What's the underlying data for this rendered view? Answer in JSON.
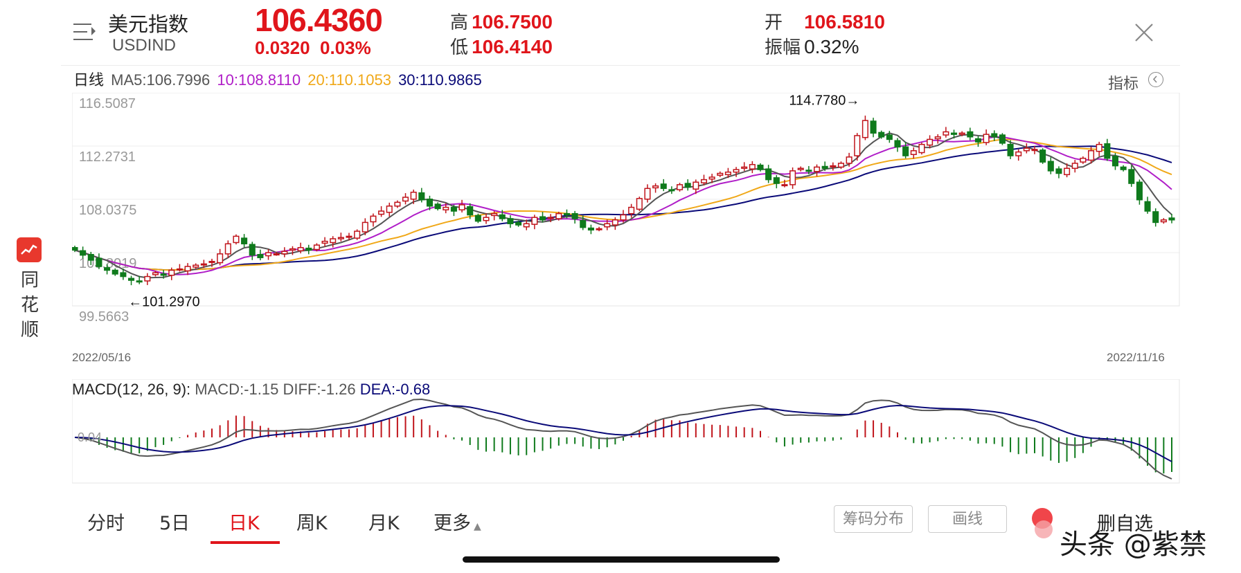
{
  "header": {
    "name": "美元指数",
    "code": "USDIND",
    "price": "106.4360",
    "change": "0.0320",
    "change_pct": "0.03%",
    "high_label": "高",
    "high": "106.7500",
    "low_label": "低",
    "low": "106.4140",
    "open_label": "开",
    "open": "106.5810",
    "amp_label": "振幅",
    "amp": "0.32%"
  },
  "ma_legend": {
    "period": "日线",
    "ma5": "MA5:106.7996",
    "ma10": "10:108.8110",
    "ma20": "20:110.1053",
    "ma30": "30:110.9865"
  },
  "indicator_label": "指标",
  "side_brand": "同花顺",
  "colors": {
    "up": "#c0141b",
    "down": "#0f7a1c",
    "accent": "#e0151b",
    "ma5": "#555555",
    "ma10": "#b01ec8",
    "ma20": "#f0a818",
    "ma30": "#0a0a78"
  },
  "kchart": {
    "y_ticks": [
      "116.5087",
      "112.2731",
      "108.0375",
      "103.8019",
      "99.5663"
    ],
    "max_annotation": "114.7780→",
    "min_annotation": "←101.2970",
    "date_start": "2022/05/16",
    "date_end": "2022/11/16"
  },
  "macd": {
    "legend_title": "MACD(12, 26, 9):",
    "macd": "MACD:-1.15",
    "diff": "DIFF:-1.26",
    "dea": "DEA:-0.68",
    "zero_label": "0.04"
  },
  "tabs": [
    "分时",
    "5日",
    "日K",
    "周K",
    "月K",
    "更多"
  ],
  "active_tab": "日K",
  "buttons": {
    "chip": "筹码分布",
    "draw": "画线",
    "fav": "删自选"
  },
  "watermark": "头条 @紫禁",
  "chart_data": {
    "type": "candlestick",
    "x_range": [
      "2022/05/16",
      "2022/11/16"
    ],
    "ylim": [
      99.5663,
      116.5087
    ],
    "y_ticks": [
      116.5087,
      112.2731,
      108.0375,
      103.8019,
      99.5663
    ],
    "close": [
      104.0,
      103.6,
      103.2,
      102.7,
      102.4,
      102.1,
      101.9,
      101.6,
      101.5,
      101.9,
      102.2,
      102.0,
      102.4,
      102.5,
      102.7,
      102.8,
      102.9,
      103.1,
      103.7,
      104.5,
      105.1,
      104.5,
      103.6,
      103.4,
      103.8,
      103.7,
      103.9,
      104.1,
      104.2,
      104.0,
      104.4,
      104.7,
      104.9,
      105.0,
      105.1,
      105.5,
      106.2,
      106.7,
      107.1,
      107.5,
      107.8,
      108.2,
      108.6,
      108.0,
      107.5,
      107.3,
      107.4,
      107.1,
      107.6,
      106.8,
      106.3,
      106.6,
      106.9,
      106.5,
      106.1,
      106.0,
      106.1,
      106.6,
      106.4,
      106.6,
      106.9,
      106.8,
      106.5,
      105.8,
      105.6,
      105.7,
      106.1,
      106.4,
      106.8,
      107.4,
      108.1,
      108.9,
      109.1,
      108.9,
      108.8,
      109.2,
      109.0,
      109.4,
      109.6,
      109.8,
      110.1,
      110.2,
      110.4,
      110.6,
      110.8,
      110.4,
      109.6,
      109.3,
      109.2,
      110.3,
      110.5,
      110.3,
      110.6,
      110.5,
      110.7,
      110.9,
      111.4,
      113.1,
      114.3,
      113.3,
      113.0,
      112.8,
      112.2,
      111.5,
      111.9,
      112.4,
      112.8,
      113.0,
      113.4,
      113.2,
      113.3,
      113.0,
      112.6,
      113.2,
      113.0,
      112.5,
      111.5,
      111.8,
      112.1,
      112.0,
      111.0,
      110.3,
      110.1,
      110.5,
      110.9,
      111.3,
      111.9,
      112.4,
      111.3,
      110.7,
      110.4,
      109.3,
      108.0,
      107.1,
      106.2,
      106.4,
      106.4
    ],
    "ma": {
      "ma5": "106.7996",
      "ma10": "108.8110",
      "ma20": "110.1053",
      "ma30": "110.9865"
    },
    "annotations": {
      "max": 114.778,
      "min": 101.297
    }
  }
}
